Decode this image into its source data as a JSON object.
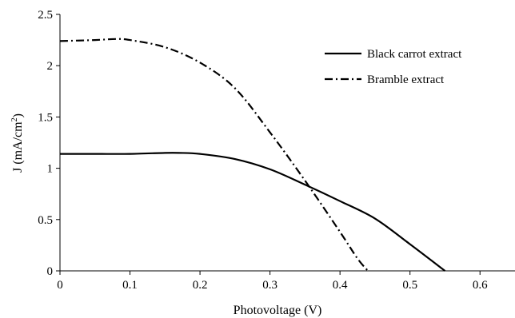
{
  "chart_data": {
    "type": "line",
    "xlabel": "Photovoltage (V)",
    "ylabel_main": "J (mA/cm",
    "ylabel_sup": "2",
    "ylabel_close": ")",
    "xlim": [
      0,
      0.65
    ],
    "ylim": [
      0,
      2.5
    ],
    "xticks": [
      "0",
      "0.1",
      "0.2",
      "0.3",
      "0.4",
      "0.5",
      "0.6"
    ],
    "xtick_values": [
      0,
      0.1,
      0.2,
      0.3,
      0.4,
      0.5,
      0.6
    ],
    "yticks": [
      "0",
      "0.5",
      "1",
      "1.5",
      "2",
      "2.5"
    ],
    "ytick_values": [
      0,
      0.5,
      1,
      1.5,
      2,
      2.5
    ],
    "grid": false,
    "legend_position": "top-right",
    "series": [
      {
        "name": "Black carrot extract",
        "style": "solid",
        "x": [
          0,
          0.05,
          0.1,
          0.15,
          0.17,
          0.2,
          0.25,
          0.3,
          0.35,
          0.4,
          0.45,
          0.5,
          0.55
        ],
        "y": [
          1.14,
          1.14,
          1.14,
          1.15,
          1.15,
          1.14,
          1.09,
          0.99,
          0.84,
          0.68,
          0.51,
          0.26,
          0.0
        ]
      },
      {
        "name": "Bramble extract",
        "style": "dash-dot",
        "x": [
          0,
          0.05,
          0.08,
          0.1,
          0.15,
          0.2,
          0.25,
          0.3,
          0.35,
          0.4,
          0.425,
          0.44
        ],
        "y": [
          2.24,
          2.25,
          2.26,
          2.25,
          2.18,
          2.03,
          1.78,
          1.35,
          0.88,
          0.38,
          0.12,
          0.0
        ]
      }
    ]
  },
  "colors": {
    "line": "#000000",
    "axis": "#000000",
    "background": "#ffffff"
  }
}
